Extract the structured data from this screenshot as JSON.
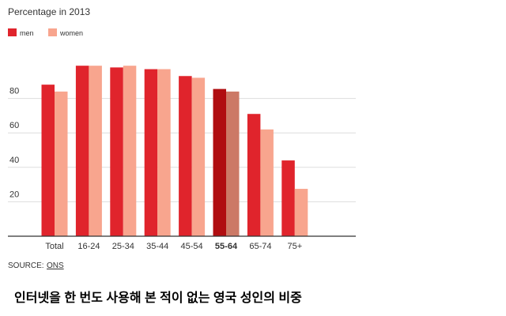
{
  "chart_data": {
    "type": "bar",
    "title": "Percentage in 2013",
    "categories": [
      "Total",
      "16-24",
      "25-34",
      "35-44",
      "45-54",
      "55-64",
      "65-74",
      "75+"
    ],
    "series": [
      {
        "name": "men",
        "color": "#e0242c",
        "highlight_color": "#b00d10",
        "values": [
          88,
          99,
          98,
          97,
          93,
          85.5,
          71,
          44
        ]
      },
      {
        "name": "women",
        "color": "#f8a58e",
        "highlight_color": "#cc7966",
        "values": [
          84,
          99,
          99,
          97,
          92,
          84,
          62,
          27.5
        ]
      }
    ],
    "highlight_index": 5,
    "ylim": [
      0,
      100
    ],
    "yticks": [
      20,
      40,
      60,
      80
    ],
    "grid": true,
    "legend": "top-left"
  },
  "source": {
    "label": "SOURCE:",
    "name": "ONS"
  },
  "caption": "인터넷을 한 번도 사용해 본 적이 없는 영국 성인의 비중"
}
